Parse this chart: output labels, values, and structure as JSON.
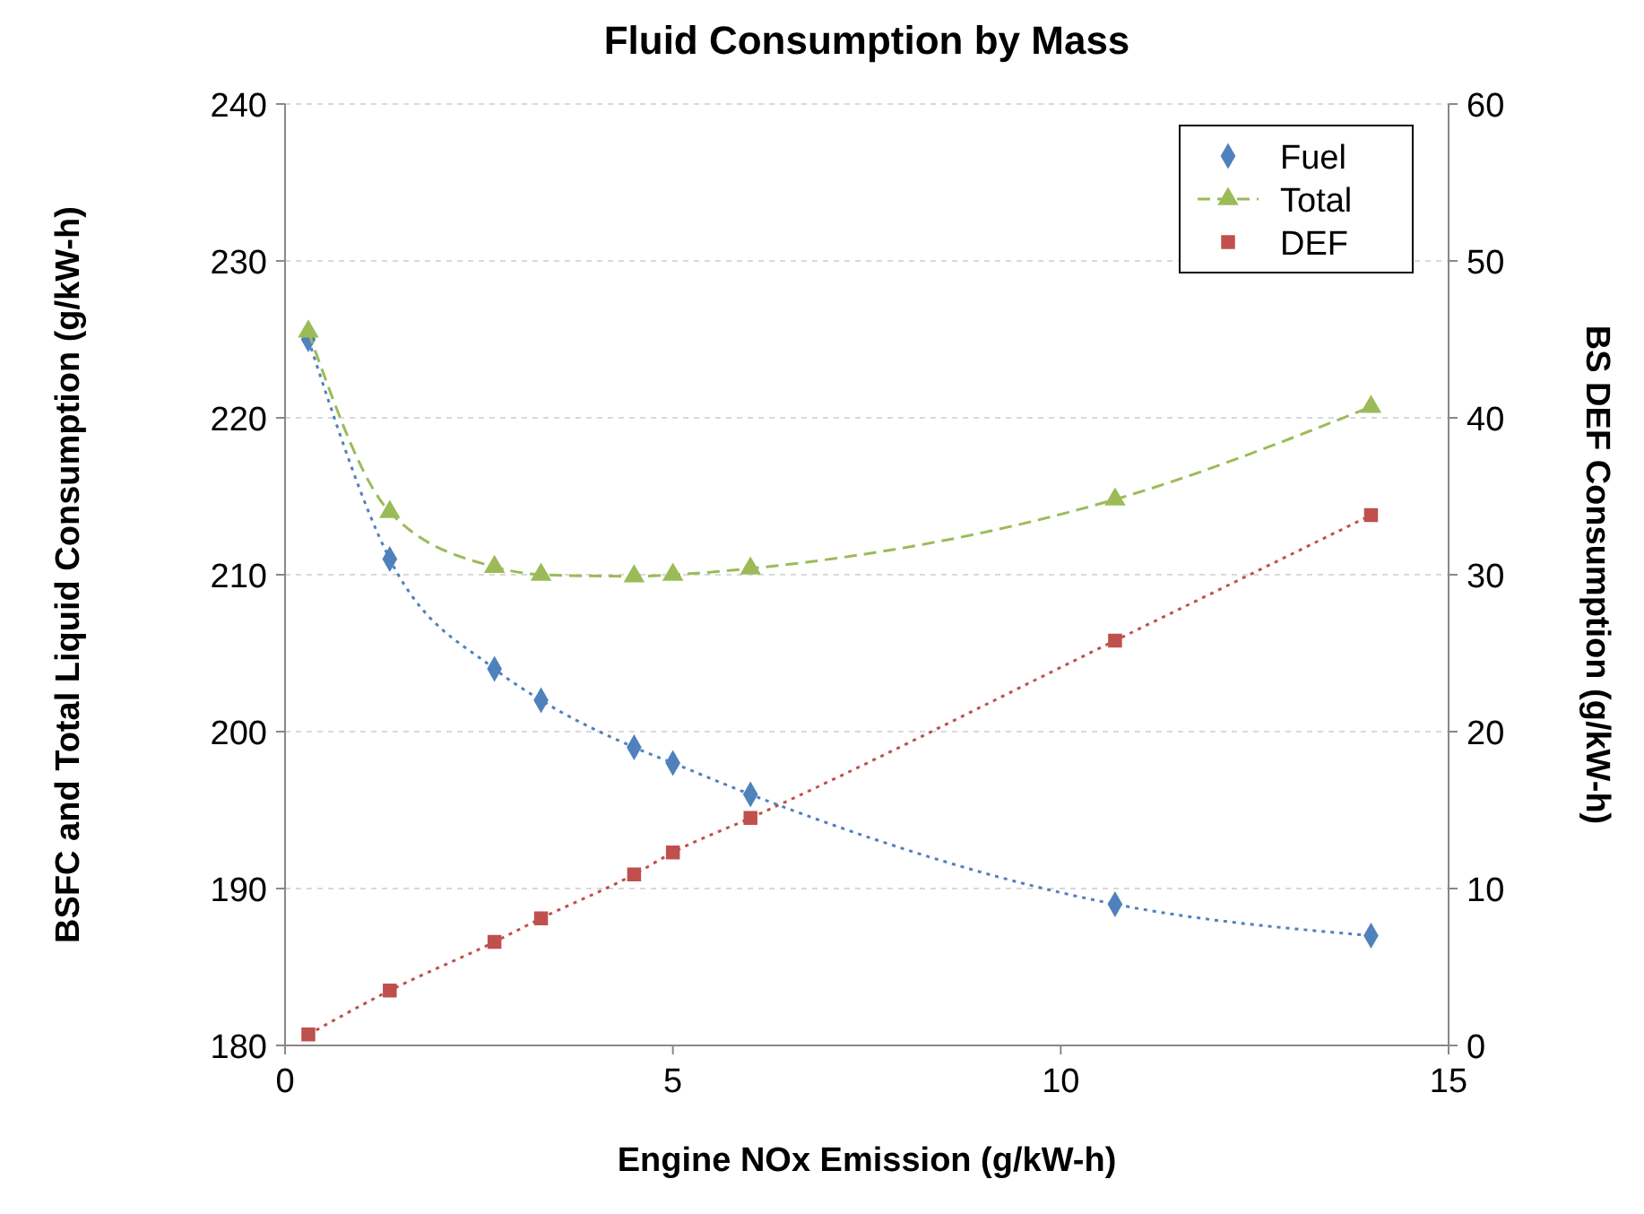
{
  "chart_data": {
    "type": "line",
    "title": "Fluid Consumption by Mass",
    "xlabel": "Engine NOx Emission (g/kW-h)",
    "ylabel": "BSFC and Total Liquid Consumption (g/kW-h)",
    "y2label": "BS DEF Consumption (g/kW-h)",
    "x": [
      0.3,
      1.35,
      2.7,
      3.3,
      4.5,
      5,
      6,
      10.7,
      14
    ],
    "series": [
      {
        "name": "Fuel",
        "color": "#4f81bd",
        "marker": "diamond",
        "line_style": "dotted",
        "values": [
          225,
          211,
          204,
          202,
          199,
          198,
          196,
          189,
          187
        ]
      },
      {
        "name": "Total",
        "color": "#9bbb59",
        "marker": "triangle",
        "line_style": "dashed",
        "values": [
          225.5,
          214,
          210.5,
          210,
          209.9,
          210,
          210.4,
          214.8,
          220.7
        ]
      },
      {
        "name": "DEF",
        "color": "#c0504d",
        "marker": "square",
        "line_style": "dotted",
        "axis": "y2",
        "values": [
          0.7,
          3.5,
          6.6,
          8.1,
          10.9,
          12.3,
          14.5,
          25.8,
          33.8
        ]
      }
    ],
    "xlim": [
      0,
      15
    ],
    "xticks": [
      0,
      5,
      10,
      15
    ],
    "ylim": [
      180,
      240
    ],
    "yticks": [
      180,
      190,
      200,
      210,
      220,
      230,
      240
    ],
    "y2lim": [
      0,
      60
    ],
    "y2ticks": [
      0,
      10,
      20,
      30,
      40,
      50,
      60
    ],
    "grid": "y",
    "legend": "top right"
  }
}
